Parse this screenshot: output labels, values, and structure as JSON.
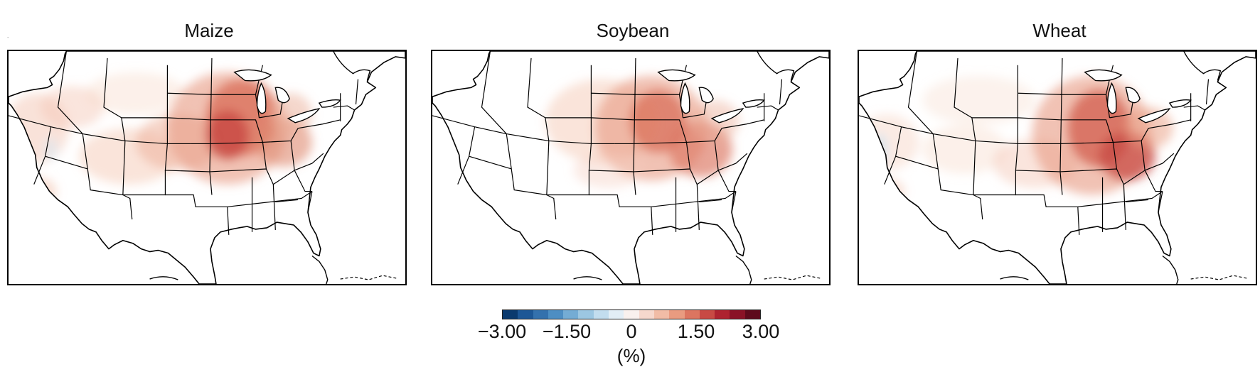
{
  "panels": [
    {
      "title": "Maize",
      "variant": "maize"
    },
    {
      "title": "Soybean",
      "variant": "soy"
    },
    {
      "title": "Wheat",
      "variant": "wheat"
    }
  ],
  "colorbar": {
    "colors": [
      "#0b3a6e",
      "#1d5796",
      "#3471ad",
      "#4d8ec3",
      "#74acd4",
      "#9cc7e2",
      "#c2ddee",
      "#e2eef6",
      "#f9f1ee",
      "#f6d8cd",
      "#f1bca6",
      "#e99b80",
      "#dc7560",
      "#c84a44",
      "#ae2330",
      "#8a1226",
      "#5e0a1c"
    ],
    "tick_labels": [
      "−3.00",
      "−1.50",
      "0",
      "1.50",
      "3.00"
    ],
    "unit": "(%)",
    "range": [
      -3.0,
      3.0
    ]
  },
  "mark": "-"
}
